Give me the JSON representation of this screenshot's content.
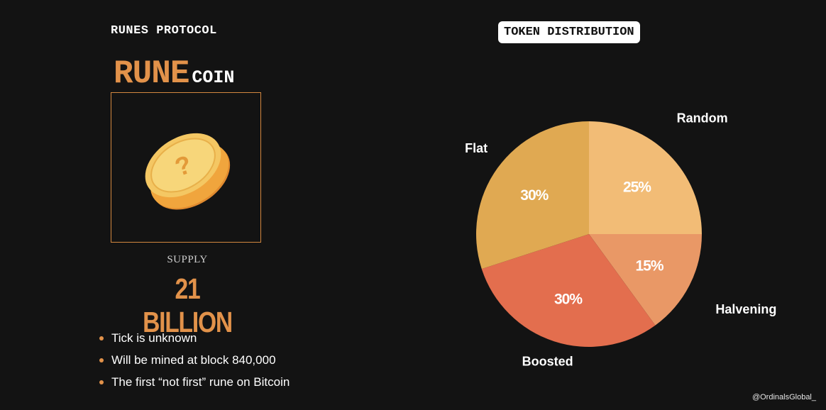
{
  "header": {
    "title": "RUNES PROTOCOL"
  },
  "coin": {
    "name_primary": "RUNE",
    "name_secondary": "COIN",
    "icon": "coin-question-icon"
  },
  "supply": {
    "label": "SUPPLY",
    "value": "21 BILLION"
  },
  "features": [
    "Tick is unknown",
    "Will be mined at block 840,000",
    "The first “not first” rune on Bitcoin"
  ],
  "distribution_badge": "TOKEN DISTRIBUTION",
  "footer": {
    "handle": "@OrdinalsGlobal_"
  },
  "colors": {
    "background": "#131313",
    "accent": "#e2924a",
    "random": "#f2bc76",
    "halvening": "#e99866",
    "boosted": "#e36e4e",
    "flat": "#e0a952"
  },
  "chart_data": {
    "type": "pie",
    "title": "TOKEN DISTRIBUTION",
    "categories": [
      "Random",
      "Halvening",
      "Boosted",
      "Flat"
    ],
    "values": [
      25,
      15,
      30,
      30
    ],
    "value_labels": [
      "25%",
      "15%",
      "30%",
      "30%"
    ],
    "colors": [
      "#f2bc76",
      "#e99866",
      "#e36e4e",
      "#e0a952"
    ],
    "start": "top",
    "direction": "clockwise",
    "legend": "none"
  }
}
